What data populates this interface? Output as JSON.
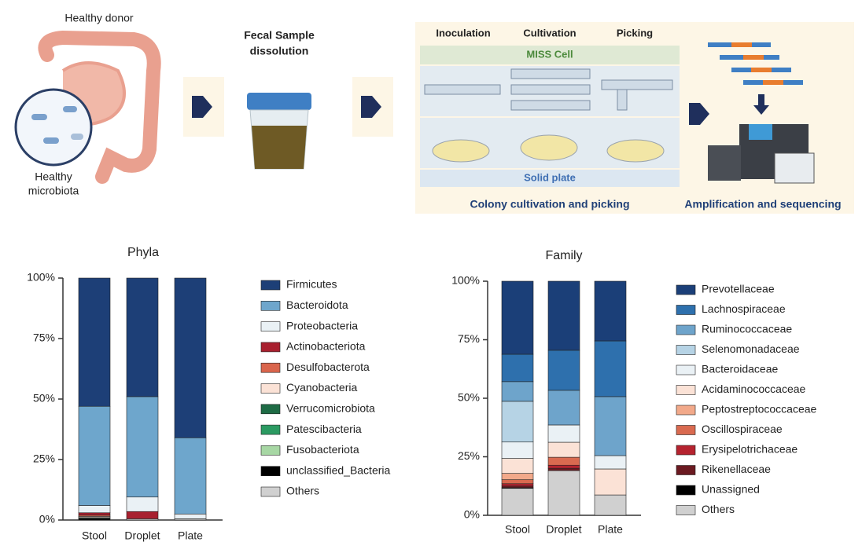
{
  "diagram": {
    "donor": "Healthy donor",
    "microbiota": [
      "Healthy",
      "microbiota"
    ],
    "fecal": [
      "Fecal Sample",
      "dissolution"
    ],
    "steps": [
      "Inoculation",
      "Cultivation",
      "Picking"
    ],
    "miss_cell": "MISS Cell",
    "solid_plate": "Solid plate",
    "caption_left": "Colony cultivation and picking",
    "caption_right": "Amplification and sequencing"
  },
  "chart_data": [
    {
      "type": "stacked_bar",
      "title": "Phyla",
      "categories": [
        "Stool",
        "Droplet",
        "Plate"
      ],
      "ylim": [
        0,
        100
      ],
      "yticks": [
        {
          "value": 0,
          "label": "0%"
        },
        {
          "value": 25,
          "label": "25%"
        },
        {
          "value": 50,
          "label": "50%"
        },
        {
          "value": 75,
          "label": "75%"
        },
        {
          "value": 100,
          "label": "100%"
        }
      ],
      "legend": "right",
      "series": [
        {
          "name": "Firmicutes",
          "color": "#1d3f77",
          "values": [
            53,
            49,
            66
          ]
        },
        {
          "name": "Bacteroidota",
          "color": "#6ea6cc",
          "values": [
            41,
            41.5,
            31.5
          ]
        },
        {
          "name": "Proteobacteria",
          "color": "#eaf1f5",
          "values": [
            3,
            6,
            2
          ]
        },
        {
          "name": "Actinobacteriota",
          "color": "#a8202f",
          "values": [
            1,
            3,
            0
          ]
        },
        {
          "name": "Desulfobacterota",
          "color": "#d9654c",
          "values": [
            0.5,
            0,
            0
          ]
        },
        {
          "name": "Cyanobacteria",
          "color": "#fbe2d6",
          "values": [
            0.5,
            0,
            0
          ]
        },
        {
          "name": "Verrucomicrobiota",
          "color": "#1e6b45",
          "values": [
            0.3,
            0,
            0
          ]
        },
        {
          "name": "Patescibacteria",
          "color": "#2b9a62",
          "values": [
            0.1,
            0,
            0
          ]
        },
        {
          "name": "Fusobacteriota",
          "color": "#a7d7a4",
          "values": [
            0.1,
            0,
            0
          ]
        },
        {
          "name": "unclassified_Bacteria",
          "color": "#000000",
          "values": [
            0.5,
            0,
            0
          ]
        },
        {
          "name": "Others",
          "color": "#d0d0d0",
          "values": [
            0,
            0.5,
            0.5
          ]
        }
      ]
    },
    {
      "type": "stacked_bar",
      "title": "Family",
      "categories": [
        "Stool",
        "Droplet",
        "Plate"
      ],
      "ylim": [
        0,
        100
      ],
      "yticks": [
        {
          "value": 0,
          "label": "0%"
        },
        {
          "value": 25,
          "label": "25%"
        },
        {
          "value": 50,
          "label": "50%"
        },
        {
          "value": 75,
          "label": "75%"
        },
        {
          "value": 100,
          "label": "100%"
        }
      ],
      "legend": "right",
      "series": [
        {
          "name": "Prevotellaceae",
          "color": "#1b3f78",
          "values": [
            31.2,
            29.5,
            25.5
          ]
        },
        {
          "name": "Lachnospiraceae",
          "color": "#2e70ad",
          "values": [
            11.7,
            17.1,
            23.8
          ]
        },
        {
          "name": "Ruminococcaceae",
          "color": "#6ea4cb",
          "values": [
            8.4,
            14.8,
            25.2
          ]
        },
        {
          "name": "Selenomonadaceae",
          "color": "#b6d3e5",
          "values": [
            17.4,
            0,
            0
          ]
        },
        {
          "name": "Bacteroidaceae",
          "color": "#eaf1f5",
          "values": [
            7,
            7.4,
            5.7
          ]
        },
        {
          "name": "Acidaminococcaceae",
          "color": "#fbe2d6",
          "values": [
            6.4,
            6.4,
            11.1
          ]
        },
        {
          "name": "Peptostreptococcaceae",
          "color": "#f2a98a",
          "values": [
            2.7,
            0,
            0
          ]
        },
        {
          "name": "Oscillospiraceae",
          "color": "#d96a50",
          "values": [
            1.7,
            3.4,
            0
          ]
        },
        {
          "name": "Erysipelotrichaceae",
          "color": "#b5232f",
          "values": [
            1,
            1.3,
            0
          ]
        },
        {
          "name": "Rikenellaceae",
          "color": "#6b1a21",
          "values": [
            0.7,
            1,
            0
          ]
        },
        {
          "name": "Unassigned",
          "color": "#000000",
          "values": [
            0.3,
            0,
            0
          ]
        },
        {
          "name": "Others",
          "color": "#d0d0d0",
          "values": [
            11.5,
            19.1,
            8.7
          ]
        }
      ]
    }
  ]
}
